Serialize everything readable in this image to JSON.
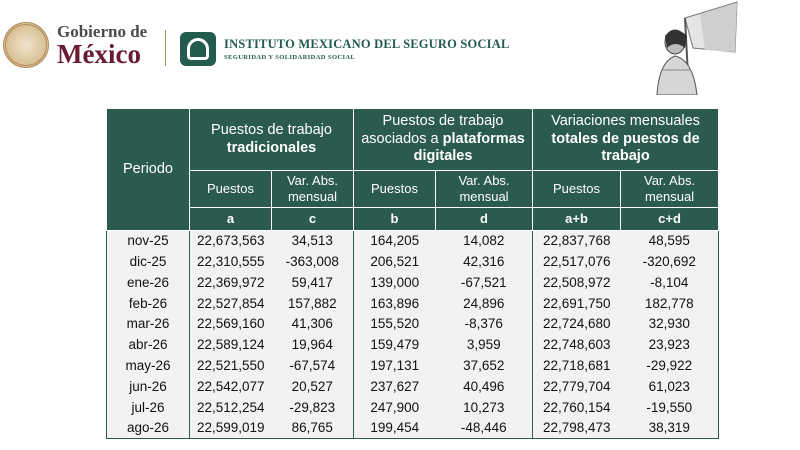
{
  "header": {
    "gob_line1": "Gobierno de",
    "gob_line2": "México",
    "imss_name": "INSTITUTO MEXICANO DEL SEGURO SOCIAL",
    "imss_sub": "SEGURIDAD Y SOLIDARIDAD SOCIAL"
  },
  "table": {
    "period_header": "Periodo",
    "groups": {
      "trad_pre": "Puestos de trabajo",
      "trad_bold": "tradicionales",
      "plat_pre": "Puestos de trabajo asociados a",
      "plat_bold": "plataformas digitales",
      "var_pre": "Variaciones mensuales",
      "var_bold": "totales de puestos de trabajo"
    },
    "subheaders": [
      "Puestos",
      "Var. Abs. mensual",
      "Puestos",
      "Var. Abs. mensual",
      "Puestos",
      "Var. Abs. mensual"
    ],
    "letters": [
      "a",
      "c",
      "b",
      "d",
      "a+b",
      "c+d"
    ],
    "rows": [
      [
        "nov-25",
        "22,673,563",
        "34,513",
        "164,205",
        "14,082",
        "22,837,768",
        "48,595"
      ],
      [
        "dic-25",
        "22,310,555",
        "-363,008",
        "206,521",
        "42,316",
        "22,517,076",
        "-320,692"
      ],
      [
        "ene-26",
        "22,369,972",
        "59,417",
        "139,000",
        "-67,521",
        "22,508,972",
        "-8,104"
      ],
      [
        "feb-26",
        "22,527,854",
        "157,882",
        "163,896",
        "24,896",
        "22,691,750",
        "182,778"
      ],
      [
        "mar-26",
        "22,569,160",
        "41,306",
        "155,520",
        "-8,376",
        "22,724,680",
        "32,930"
      ],
      [
        "abr-26",
        "22,589,124",
        "19,964",
        "159,479",
        "3,959",
        "22,748,603",
        "23,923"
      ],
      [
        "may-26",
        "22,521,550",
        "-67,574",
        "197,131",
        "37,652",
        "22,718,681",
        "-29,922"
      ],
      [
        "jun-26",
        "22,542,077",
        "20,527",
        "237,627",
        "40,496",
        "22,779,704",
        "61,023"
      ],
      [
        "jul-26",
        "22,512,254",
        "-29,823",
        "247,900",
        "10,273",
        "22,760,154",
        "-19,550"
      ],
      [
        "ago-26",
        "22,599,019",
        "86,765",
        "199,454",
        "-48,446",
        "22,798,473",
        "38,319"
      ]
    ]
  }
}
